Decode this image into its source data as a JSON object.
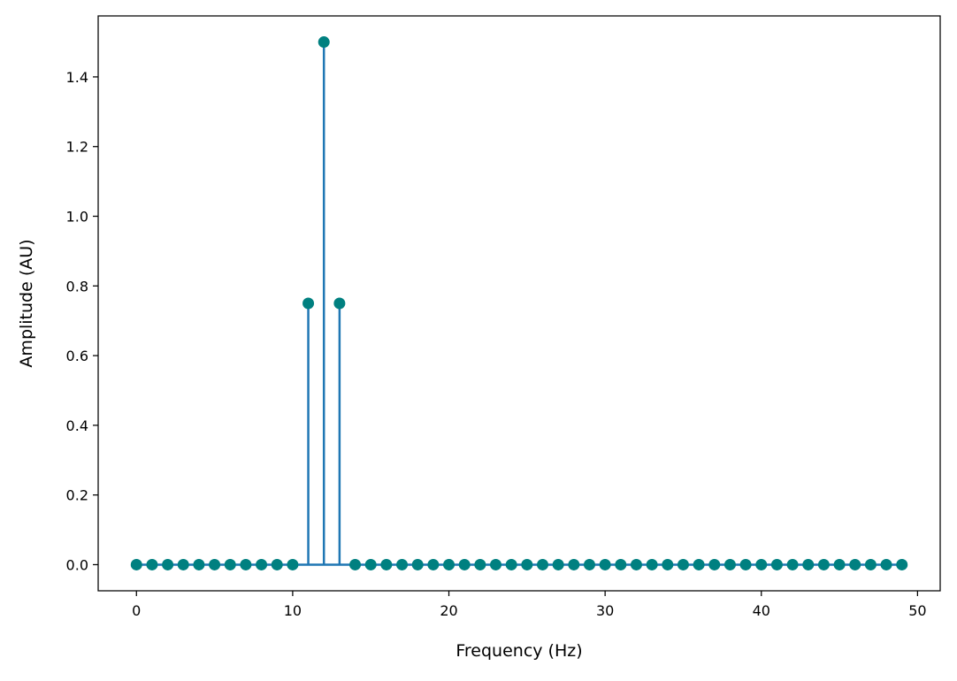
{
  "chart_data": {
    "type": "stem",
    "title": "",
    "xlabel": "Frequency (Hz)",
    "ylabel": "Amplitude (AU)",
    "xlim": [
      -2.45,
      51.45
    ],
    "ylim": [
      -0.075,
      1.575
    ],
    "xticks": [
      0,
      10,
      20,
      30,
      40,
      50
    ],
    "xtick_labels": [
      "0",
      "10",
      "20",
      "30",
      "40",
      "50"
    ],
    "yticks": [
      0.0,
      0.2,
      0.4,
      0.6,
      0.8,
      1.0,
      1.2,
      1.4
    ],
    "ytick_labels": [
      "0.0",
      "0.2",
      "0.4",
      "0.6",
      "0.8",
      "1.0",
      "1.2",
      "1.4"
    ],
    "grid": false,
    "baseline": 0.0,
    "x": [
      0,
      1,
      2,
      3,
      4,
      5,
      6,
      7,
      8,
      9,
      10,
      11,
      12,
      13,
      14,
      15,
      16,
      17,
      18,
      19,
      20,
      21,
      22,
      23,
      24,
      25,
      26,
      27,
      28,
      29,
      30,
      31,
      32,
      33,
      34,
      35,
      36,
      37,
      38,
      39,
      40,
      41,
      42,
      43,
      44,
      45,
      46,
      47,
      48,
      49
    ],
    "y": [
      0,
      0,
      0,
      0,
      0,
      0,
      0,
      0,
      0,
      0,
      0,
      0.75,
      1.5,
      0.75,
      0,
      0,
      0,
      0,
      0,
      0,
      0,
      0,
      0,
      0,
      0,
      0,
      0,
      0,
      0,
      0,
      0,
      0,
      0,
      0,
      0,
      0,
      0,
      0,
      0,
      0,
      0,
      0,
      0,
      0,
      0,
      0,
      0,
      0,
      0,
      0
    ],
    "colors": {
      "stem": "#1f77b4",
      "marker": "#008080",
      "baseline": "#1f77b4"
    }
  }
}
